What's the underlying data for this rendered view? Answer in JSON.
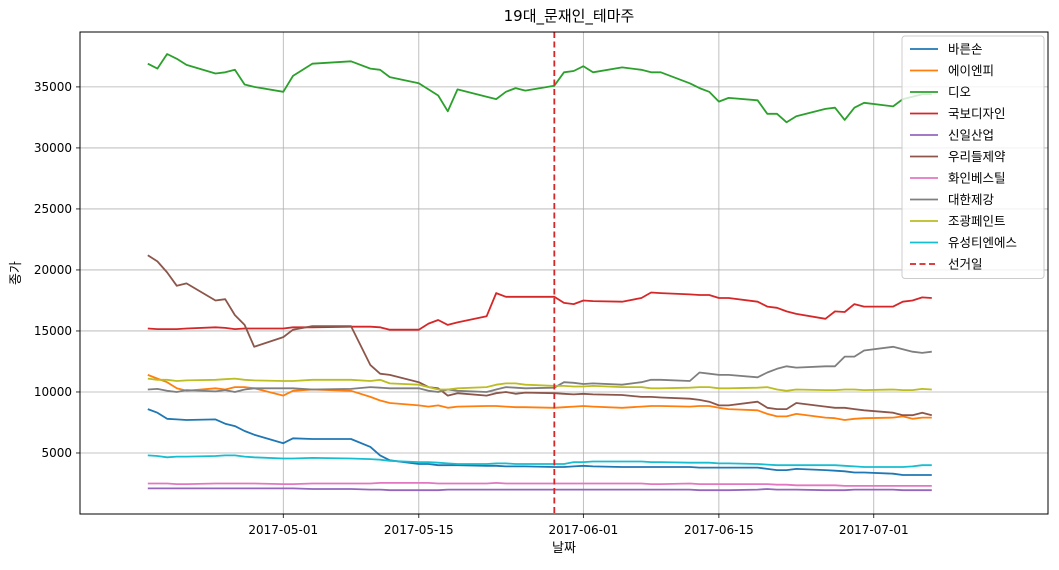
{
  "chart_data": {
    "type": "line",
    "title": "19대_문재인_테마주",
    "xlabel": "날짜",
    "ylabel": "종가",
    "x_range": [
      "2017-04-10",
      "2017-07-19"
    ],
    "x_ticks": [
      "2017-05-01",
      "2017-05-15",
      "2017-06-01",
      "2017-06-15",
      "2017-07-01"
    ],
    "ylim": [
      0,
      39500
    ],
    "y_ticks": [
      5000,
      10000,
      15000,
      20000,
      25000,
      30000,
      35000
    ],
    "grid": true,
    "legend_position": "top-right",
    "dates": [
      "2017-04-17",
      "2017-04-18",
      "2017-04-19",
      "2017-04-20",
      "2017-04-21",
      "2017-04-24",
      "2017-04-25",
      "2017-04-26",
      "2017-04-27",
      "2017-04-28",
      "2017-05-01",
      "2017-05-02",
      "2017-05-04",
      "2017-05-08",
      "2017-05-10",
      "2017-05-11",
      "2017-05-12",
      "2017-05-15",
      "2017-05-16",
      "2017-05-17",
      "2017-05-18",
      "2017-05-19",
      "2017-05-22",
      "2017-05-23",
      "2017-05-24",
      "2017-05-25",
      "2017-05-26",
      "2017-05-29",
      "2017-05-30",
      "2017-05-31",
      "2017-06-01",
      "2017-06-02",
      "2017-06-05",
      "2017-06-07",
      "2017-06-08",
      "2017-06-09",
      "2017-06-12",
      "2017-06-13",
      "2017-06-14",
      "2017-06-15",
      "2017-06-16",
      "2017-06-19",
      "2017-06-20",
      "2017-06-21",
      "2017-06-22",
      "2017-06-23",
      "2017-06-26",
      "2017-06-27",
      "2017-06-28",
      "2017-06-29",
      "2017-06-30",
      "2017-07-03",
      "2017-07-04",
      "2017-07-05",
      "2017-07-06",
      "2017-07-07"
    ],
    "series": [
      {
        "name": "바른손",
        "color": "#1f77b4",
        "values": [
          8600,
          8300,
          7800,
          7750,
          7700,
          7750,
          7400,
          7200,
          6800,
          6500,
          5800,
          6200,
          6150,
          6150,
          5500,
          4800,
          4400,
          4100,
          4100,
          4000,
          4000,
          4000,
          3950,
          3950,
          3900,
          3900,
          3900,
          3850,
          3850,
          3900,
          3950,
          3900,
          3850,
          3850,
          3850,
          3850,
          3850,
          3800,
          3800,
          3800,
          3800,
          3800,
          3700,
          3600,
          3600,
          3700,
          3600,
          3550,
          3500,
          3400,
          3400,
          3300,
          3200,
          3200,
          3200,
          3200
        ]
      },
      {
        "name": "에이엔피",
        "color": "#ff7f0e",
        "values": [
          11400,
          11100,
          10800,
          10300,
          10100,
          10300,
          10200,
          10400,
          10400,
          10300,
          9700,
          10100,
          10200,
          10100,
          9600,
          9300,
          9100,
          8900,
          8800,
          8900,
          8700,
          8800,
          8850,
          8850,
          8800,
          8750,
          8750,
          8700,
          8750,
          8800,
          8850,
          8800,
          8700,
          8800,
          8850,
          8850,
          8800,
          8850,
          8850,
          8700,
          8600,
          8500,
          8200,
          8000,
          8000,
          8200,
          7900,
          7850,
          7700,
          7800,
          7850,
          7900,
          8000,
          7800,
          7900,
          7900
        ]
      },
      {
        "name": "디오",
        "color": "#2ca02c",
        "values": [
          36900,
          36500,
          37700,
          37300,
          36800,
          36100,
          36200,
          36400,
          35200,
          35000,
          34600,
          35900,
          36900,
          37100,
          36500,
          36400,
          35800,
          35300,
          34800,
          34300,
          33000,
          34800,
          34200,
          34000,
          34600,
          34900,
          34700,
          35100,
          36200,
          36300,
          36700,
          36200,
          36600,
          36400,
          36200,
          36200,
          35300,
          34900,
          34600,
          33800,
          34100,
          33900,
          32800,
          32800,
          32100,
          32600,
          33200,
          33300,
          32300,
          33300,
          33700,
          33400,
          34000,
          34200,
          34400,
          34400
        ]
      },
      {
        "name": "국보디자인",
        "color": "#d62728",
        "values": [
          15200,
          15150,
          15150,
          15150,
          15200,
          15300,
          15250,
          15150,
          15200,
          15200,
          15200,
          15300,
          15300,
          15350,
          15350,
          15300,
          15100,
          15100,
          15600,
          15900,
          15500,
          15700,
          16200,
          18100,
          17800,
          17800,
          17800,
          17800,
          17300,
          17200,
          17500,
          17450,
          17400,
          17700,
          18150,
          18100,
          18000,
          17950,
          17950,
          17700,
          17700,
          17400,
          17000,
          16900,
          16600,
          16400,
          16000,
          16600,
          16550,
          17200,
          17000,
          17000,
          17400,
          17500,
          17750,
          17700
        ]
      },
      {
        "name": "신일산업",
        "color": "#9467bd",
        "values": [
          2100,
          2100,
          2100,
          2100,
          2100,
          2100,
          2100,
          2100,
          2100,
          2100,
          2100,
          2100,
          2050,
          2050,
          2000,
          2000,
          1950,
          1950,
          1950,
          1950,
          2000,
          2000,
          2000,
          2000,
          2000,
          2000,
          2000,
          2000,
          2000,
          2000,
          2000,
          2000,
          2000,
          2000,
          2000,
          2000,
          2000,
          1950,
          1950,
          1950,
          1950,
          2000,
          2050,
          2000,
          2000,
          2000,
          1950,
          1950,
          1950,
          2000,
          2000,
          2000,
          1950,
          1950,
          1950,
          1950
        ]
      },
      {
        "name": "우리들제약",
        "color": "#8c564b",
        "values": [
          21200,
          20700,
          19800,
          18700,
          18900,
          17500,
          17600,
          16300,
          15500,
          13700,
          14500,
          15100,
          15400,
          15400,
          12200,
          11500,
          11400,
          10800,
          10400,
          10300,
          9700,
          9900,
          9700,
          9900,
          10000,
          9850,
          9950,
          9900,
          9850,
          9800,
          9850,
          9800,
          9750,
          9600,
          9600,
          9550,
          9450,
          9350,
          9200,
          8900,
          8900,
          9200,
          8700,
          8600,
          8600,
          9100,
          8800,
          8700,
          8700,
          8600,
          8500,
          8300,
          8100,
          8100,
          8300,
          8100
        ]
      },
      {
        "name": "화인베스틸",
        "color": "#e377c2",
        "values": [
          2500,
          2500,
          2500,
          2450,
          2450,
          2500,
          2500,
          2500,
          2500,
          2500,
          2450,
          2450,
          2500,
          2500,
          2500,
          2550,
          2550,
          2550,
          2550,
          2500,
          2500,
          2500,
          2500,
          2550,
          2500,
          2500,
          2500,
          2500,
          2500,
          2500,
          2500,
          2500,
          2500,
          2500,
          2450,
          2450,
          2500,
          2450,
          2450,
          2450,
          2450,
          2450,
          2450,
          2400,
          2400,
          2350,
          2350,
          2350,
          2300,
          2300,
          2300,
          2300,
          2300,
          2300,
          2300,
          2300
        ]
      },
      {
        "name": "대한제강",
        "color": "#7f7f7f",
        "values": [
          10200,
          10250,
          10100,
          10000,
          10150,
          10050,
          10150,
          10000,
          10200,
          10300,
          10300,
          10300,
          10200,
          10250,
          10400,
          10350,
          10300,
          10300,
          10100,
          10000,
          10200,
          10100,
          10000,
          10200,
          10400,
          10350,
          10300,
          10350,
          10800,
          10750,
          10650,
          10700,
          10600,
          10800,
          11000,
          11000,
          10900,
          11600,
          11500,
          11400,
          11400,
          11200,
          11600,
          11900,
          12100,
          12000,
          12100,
          12100,
          12900,
          12900,
          13400,
          13700,
          13500,
          13300,
          13200,
          13300
        ]
      },
      {
        "name": "조광페인트",
        "color": "#bcbd22",
        "values": [
          11100,
          11000,
          11000,
          10900,
          10950,
          11000,
          11050,
          11100,
          11000,
          10950,
          10900,
          10900,
          11000,
          11000,
          10900,
          11000,
          10700,
          10600,
          10400,
          10200,
          10200,
          10300,
          10400,
          10600,
          10700,
          10700,
          10600,
          10500,
          10500,
          10450,
          10450,
          10500,
          10400,
          10400,
          10300,
          10300,
          10350,
          10400,
          10400,
          10300,
          10300,
          10350,
          10400,
          10200,
          10100,
          10200,
          10150,
          10150,
          10200,
          10200,
          10150,
          10200,
          10150,
          10150,
          10250,
          10200
        ]
      },
      {
        "name": "유성티엔에스",
        "color": "#17becf",
        "values": [
          4800,
          4750,
          4650,
          4700,
          4700,
          4750,
          4800,
          4800,
          4700,
          4650,
          4550,
          4550,
          4600,
          4550,
          4500,
          4450,
          4350,
          4250,
          4250,
          4200,
          4150,
          4100,
          4100,
          4150,
          4150,
          4100,
          4100,
          4100,
          4100,
          4250,
          4250,
          4300,
          4300,
          4300,
          4250,
          4250,
          4200,
          4200,
          4200,
          4150,
          4150,
          4100,
          4050,
          4000,
          4000,
          4000,
          4000,
          4000,
          3950,
          3900,
          3850,
          3850,
          3850,
          3900,
          4000,
          4000
        ]
      }
    ],
    "election": {
      "name": "선거일",
      "date": "2017-05-29",
      "color": "#d62728"
    }
  }
}
